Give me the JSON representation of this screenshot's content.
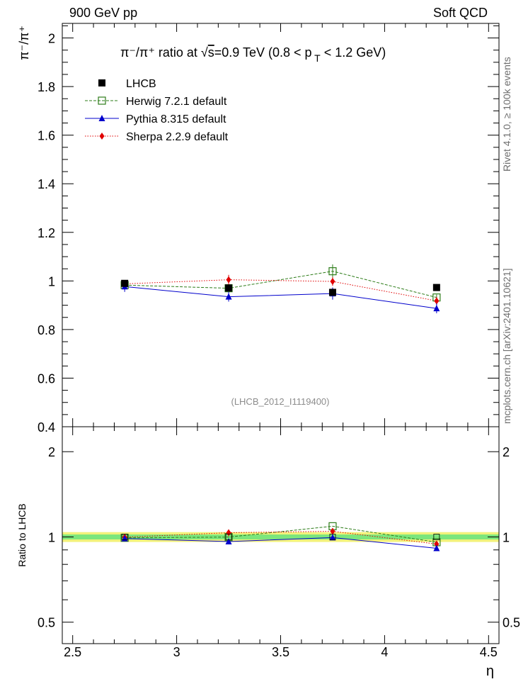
{
  "header": {
    "left": "900 GeV pp",
    "right": "Soft QCD"
  },
  "side_labels": {
    "rivet": "Rivet 4.1.0, ≥ 100k events",
    "mcplots": "mcplots.cern.ch [arXiv:2401.10621]"
  },
  "colors": {
    "lhcb": "#000000",
    "herwig": "#2e7d1a",
    "pythia": "#0000cc",
    "sherpa": "#e00000",
    "band_inner": "#7ce67c",
    "band_outer": "#f2f27a"
  },
  "chart_data": [
    {
      "type": "scatter",
      "panel": "main",
      "title": {
        "prefix": "π⁻/π⁺ ratio at ",
        "sqrt": "√",
        "s": "s",
        "suffix": "=0.9 TeV (0.8 < p",
        "sub": "T",
        "tail": " < 1.2 GeV)"
      },
      "ylabel": "π⁻/π⁺",
      "ylim": [
        0.4,
        2.06
      ],
      "yticks": [
        0.4,
        0.6,
        0.8,
        1,
        1.2,
        1.4,
        1.6,
        1.8,
        2
      ],
      "yticklabels": [
        "0.4",
        "0.6",
        "0.8",
        "1",
        "1.2",
        "1.4",
        "1.6",
        "1.8",
        "2"
      ],
      "watermark": "(LHCB_2012_I1119400)",
      "x": [
        2.75,
        3.25,
        3.75,
        4.25
      ],
      "series": [
        {
          "name": "LHCB",
          "key": "lhcb",
          "values": [
            0.99,
            0.971,
            0.953,
            0.973
          ],
          "errors": [
            0.01,
            0.01,
            0.012,
            0.01
          ]
        },
        {
          "name": "Herwig 7.2.1 default",
          "key": "herwig",
          "values": [
            0.983,
            0.97,
            1.04,
            0.932
          ],
          "errors": [
            0.012,
            0.013,
            0.028,
            0.012
          ]
        },
        {
          "name": "Pythia 8.315 default",
          "key": "pythia",
          "values": [
            0.977,
            0.935,
            0.948,
            0.887
          ],
          "errors": [
            0.022,
            0.02,
            0.025,
            0.02
          ]
        },
        {
          "name": "Sherpa 2.2.9 default",
          "key": "sherpa",
          "values": [
            0.988,
            1.005,
            0.998,
            0.918
          ],
          "errors": [
            0.015,
            0.02,
            0.018,
            0.016
          ]
        }
      ]
    },
    {
      "type": "scatter",
      "panel": "ratio",
      "ylabel": "Ratio to LHCB",
      "xlabel": "η",
      "xlim": [
        2.45,
        4.55
      ],
      "xticks": [
        2.5,
        3,
        3.5,
        4,
        4.5
      ],
      "xticklabels": [
        "2.5",
        "3",
        "3.5",
        "4",
        "4.5"
      ],
      "ylim": [
        0.42,
        2.45
      ],
      "yticks": [
        0.5,
        1,
        2
      ],
      "yticklabels": [
        "0.5",
        "1",
        "2"
      ],
      "band_inner": 0.02,
      "band_outer": 0.04,
      "x": [
        2.75,
        3.25,
        3.75,
        4.25
      ],
      "series": [
        {
          "name": "LHCB",
          "key": "lhcb",
          "values": [
            1.0,
            1.0,
            1.0,
            1.0
          ]
        },
        {
          "name": "Herwig 7.2.1 default",
          "key": "herwig",
          "values": [
            0.993,
            0.999,
            1.091,
            0.958
          ]
        },
        {
          "name": "Pythia 8.315 default",
          "key": "pythia",
          "values": [
            0.987,
            0.963,
            0.995,
            0.912
          ]
        },
        {
          "name": "Sherpa 2.2.9 default",
          "key": "sherpa",
          "values": [
            0.998,
            1.035,
            1.047,
            0.944
          ]
        }
      ]
    }
  ]
}
